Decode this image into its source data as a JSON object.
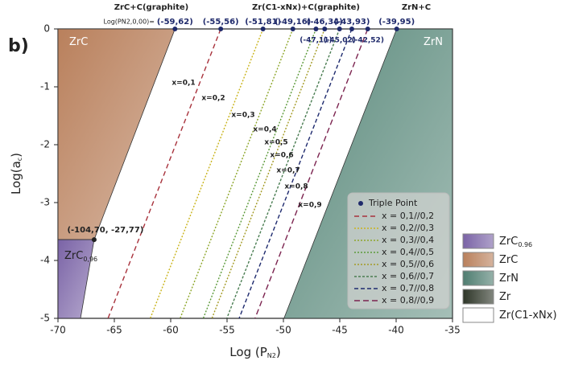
{
  "chart_data": {
    "type": "phase",
    "panel_label": "b)",
    "xlabel": [
      "Log (P",
      "N2",
      ")"
    ],
    "ylabel": [
      "Log(a",
      "c",
      ")"
    ],
    "xlim": [
      -70,
      -35
    ],
    "xticks": [
      -70,
      -65,
      -60,
      -55,
      -50,
      -45,
      -40,
      -35
    ],
    "ylim": [
      -5,
      0
    ],
    "yticks": [
      -5,
      -4,
      -3,
      -2,
      -1,
      0
    ],
    "top_labels": [
      "ZrC+C(graphite)",
      "Zr(C1-xNx)+C(graphite)",
      "ZrN+C"
    ],
    "top_prefix": "Log(PN2,0,00)=",
    "regions": [
      {
        "label": "ZrC",
        "color": "#b9805c",
        "x": [
          -70,
          -59.62,
          -66.79,
          -70
        ],
        "y": [
          0,
          0,
          -3.64,
          -3.64
        ]
      },
      {
        "label": "ZrC",
        "label_sub": "0,96",
        "color": "#7a63a6",
        "x": [
          -70,
          -66.79,
          -68.0,
          -70
        ],
        "y": [
          -3.64,
          -3.64,
          -5,
          -5
        ]
      },
      {
        "label": "ZrN",
        "color": "#5b8a7c",
        "x": [
          -39.95,
          -35,
          -35,
          -49.95
        ],
        "y": [
          0,
          0,
          -5,
          -5
        ]
      }
    ],
    "triple_points": {
      "name": "Triple Point",
      "color": "#1f2a6b",
      "x": [
        -59.62,
        -55.56,
        -51.81,
        -49.16,
        -47.11,
        -46.34,
        -45.02,
        -43.93,
        -42.52,
        -39.95
      ],
      "y": [
        0,
        0,
        0,
        0,
        0,
        0,
        0,
        0,
        0,
        0
      ],
      "value_labels": [
        "(-59,62)",
        "(-55,56)",
        "(-51,81)",
        "(-49,16)",
        "(-47,11)",
        "(-46,34)",
        "(-45,02)",
        "(-43,93)",
        "(-42,52)",
        "(-39,95)"
      ]
    },
    "corner_point": {
      "x": -66.79,
      "y": -3.64,
      "label": "(-104,70, -27,77)"
    },
    "series": [
      {
        "name": "x = 0,1//0,2",
        "color": "#a8323c",
        "dash": "6 4",
        "x": [
          -55.56,
          -65.56
        ],
        "y": [
          0,
          -5
        ]
      },
      {
        "name": "x = 0,2//0,3",
        "color": "#c9b41c",
        "dash": "2 2",
        "x": [
          -51.81,
          -61.81
        ],
        "y": [
          0,
          -5
        ]
      },
      {
        "name": "x = 0,3//0,4",
        "color": "#8da62a",
        "dash": "2 2",
        "x": [
          -49.16,
          -59.16
        ],
        "y": [
          0,
          -5
        ]
      },
      {
        "name": "x = 0,4//0,5",
        "color": "#5c9a3a",
        "dash": "2 2",
        "x": [
          -47.11,
          -57.11
        ],
        "y": [
          0,
          -5
        ]
      },
      {
        "name": "x = 0,5//0,6",
        "color": "#a39a24",
        "dash": "2 2",
        "x": [
          -46.34,
          -56.34
        ],
        "y": [
          0,
          -5
        ]
      },
      {
        "name": "x = 0,6//0,7",
        "color": "#4a7d52",
        "dash": "3 2",
        "x": [
          -45.02,
          -55.02
        ],
        "y": [
          0,
          -5
        ]
      },
      {
        "name": "x = 0,7//0,8",
        "color": "#1e2a6e",
        "dash": "5 3",
        "x": [
          -43.93,
          -53.93
        ],
        "y": [
          0,
          -5
        ]
      },
      {
        "name": "x = 0,8//0,9",
        "color": "#7c2450",
        "dash": "7 4",
        "x": [
          -42.52,
          -52.52
        ],
        "y": [
          0,
          -5
        ]
      }
    ],
    "line_labels": [
      "x=0,1",
      "x=0,2",
      "x=0,3",
      "x=0,4",
      "x=0,5",
      "x=0,6",
      "x=0,7",
      "x=0,8",
      "x=0,9"
    ],
    "phase_legend": [
      {
        "name": "ZrC",
        "sub": "0.96",
        "color": "#7a63a6"
      },
      {
        "name": "ZrC",
        "color": "#b9805c"
      },
      {
        "name": "ZrN",
        "color": "#4f7d70"
      },
      {
        "name": "Zr",
        "color": "#2e3628"
      },
      {
        "name": "Zr(C1-xNx)",
        "color": "#ffffff"
      }
    ]
  }
}
